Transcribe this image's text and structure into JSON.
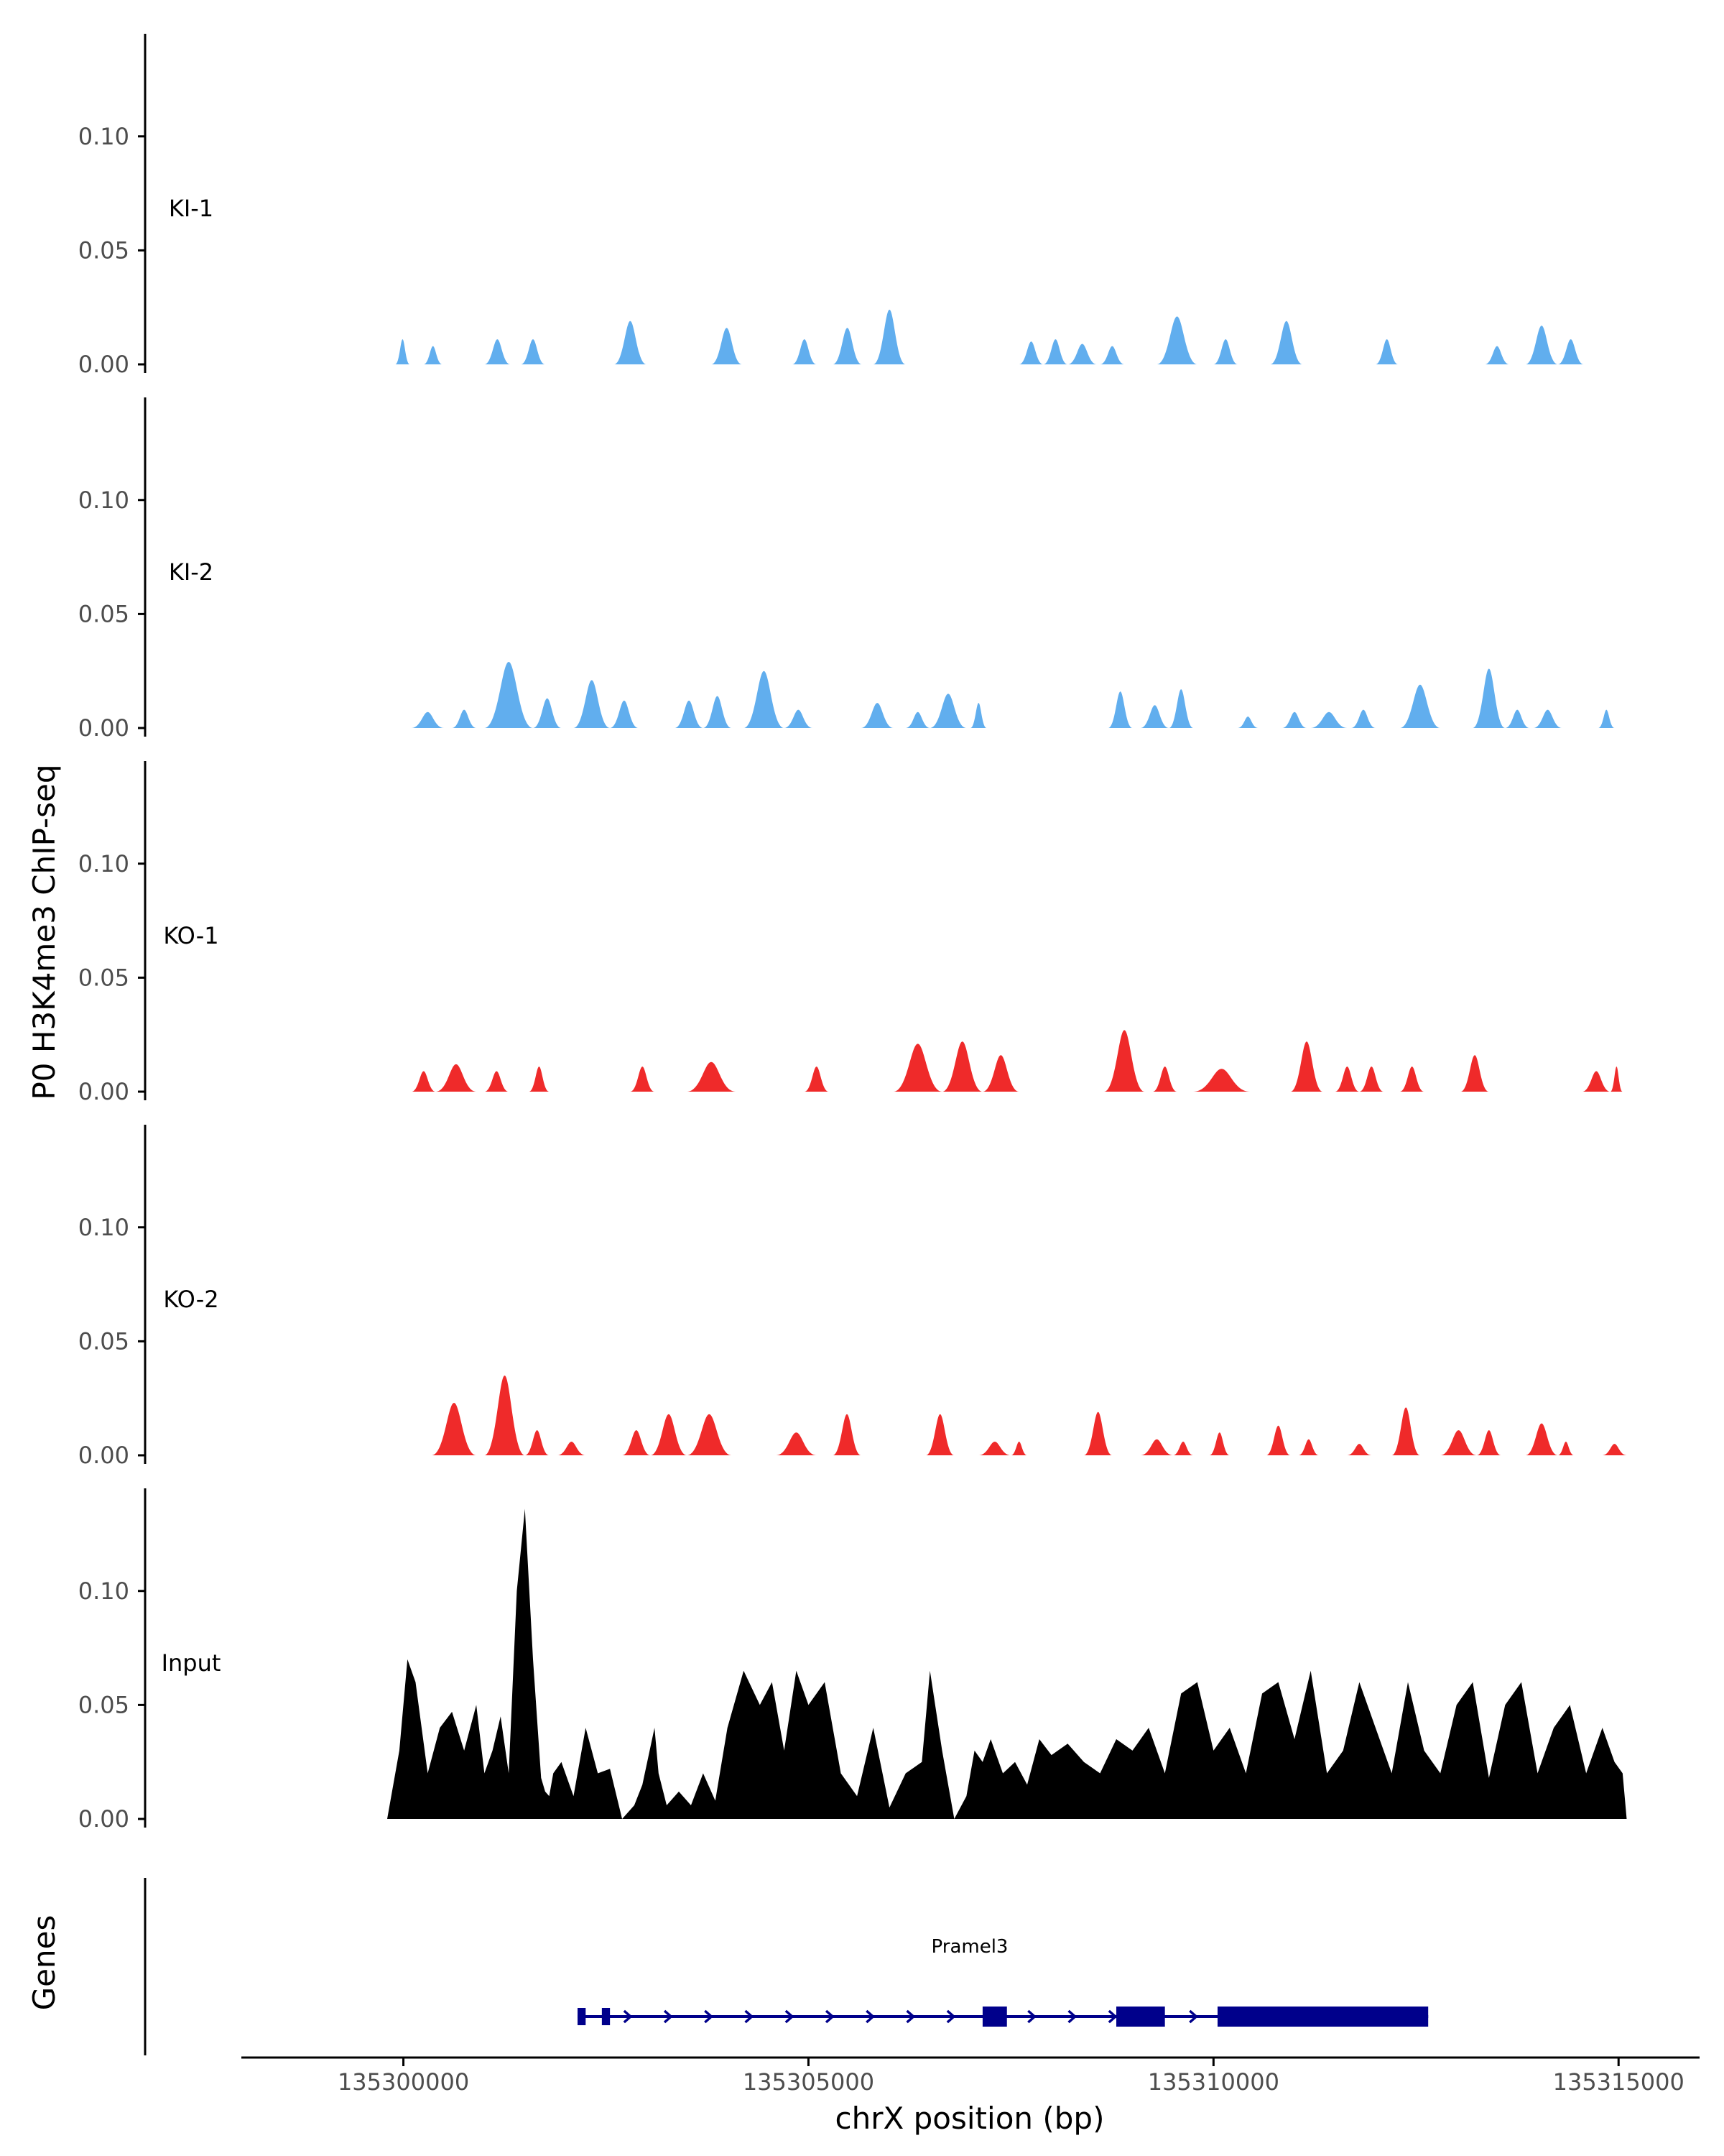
{
  "figure": {
    "ylabel": "P0 H3K4me3 ChIP-seq",
    "genes_label": "Genes",
    "xlabel": "chrX position (bp)",
    "gene_name": "Pramel3"
  },
  "colors": {
    "ki": "#61aeee",
    "ko": "#ef2a2a",
    "input": "#000000",
    "gene": "#00008b",
    "axis": "#000000",
    "tick_text": "#4d4d4d"
  },
  "chart_data": {
    "type": "area",
    "xlim": [
      135298000,
      135316000
    ],
    "x_ticks": [
      135300000,
      135305000,
      135310000,
      135315000
    ],
    "x_tick_labels": [
      "135300000",
      "135305000",
      "135310000",
      "135315000"
    ],
    "ylim": [
      0,
      0.145
    ],
    "y_ticks": [
      0,
      0.05,
      0.1
    ],
    "y_tick_labels": [
      "0.00",
      "0.05",
      "0.10"
    ],
    "tracks": [
      {
        "name": "KI-1",
        "color": "#61aeee",
        "peaks": [
          [
            135299900,
            135300080,
            0.011
          ],
          [
            135300250,
            135300480,
            0.008
          ],
          [
            135301000,
            135301320,
            0.011
          ],
          [
            135301450,
            135301750,
            0.011
          ],
          [
            135302600,
            135303000,
            0.019
          ],
          [
            135303800,
            135304180,
            0.016
          ],
          [
            135304800,
            135305100,
            0.011
          ],
          [
            135305300,
            135305660,
            0.016
          ],
          [
            135305800,
            135306200,
            0.024
          ],
          [
            135307600,
            135307900,
            0.01
          ],
          [
            135307900,
            135308200,
            0.011
          ],
          [
            135308200,
            135308560,
            0.009
          ],
          [
            135308600,
            135308900,
            0.008
          ],
          [
            135309300,
            135309800,
            0.021
          ],
          [
            135310000,
            135310300,
            0.011
          ],
          [
            135310700,
            135311100,
            0.019
          ],
          [
            135312000,
            135312280,
            0.011
          ],
          [
            135313350,
            135313650,
            0.008
          ],
          [
            135313850,
            135314250,
            0.017
          ],
          [
            135314250,
            135314570,
            0.011
          ]
        ]
      },
      {
        "name": "KI-2",
        "color": "#61aeee",
        "peaks": [
          [
            135300100,
            135300500,
            0.007
          ],
          [
            135300600,
            135300900,
            0.008
          ],
          [
            135301000,
            135301600,
            0.029
          ],
          [
            135301600,
            135301950,
            0.013
          ],
          [
            135302100,
            135302550,
            0.021
          ],
          [
            135302550,
            135302900,
            0.012
          ],
          [
            135303350,
            135303700,
            0.012
          ],
          [
            135303700,
            135304050,
            0.014
          ],
          [
            135304200,
            135304700,
            0.025
          ],
          [
            135304700,
            135305050,
            0.008
          ],
          [
            135305650,
            135306050,
            0.011
          ],
          [
            135306200,
            135306500,
            0.007
          ],
          [
            135306500,
            135306950,
            0.015
          ],
          [
            135307000,
            135307200,
            0.011
          ],
          [
            135308700,
            135309000,
            0.016
          ],
          [
            135309100,
            135309450,
            0.01
          ],
          [
            135309450,
            135309750,
            0.017
          ],
          [
            135310300,
            135310550,
            0.005
          ],
          [
            135310850,
            135311150,
            0.007
          ],
          [
            135311200,
            135311650,
            0.007
          ],
          [
            135311700,
            135312000,
            0.008
          ],
          [
            135312300,
            135312800,
            0.019
          ],
          [
            135313200,
            135313600,
            0.026
          ],
          [
            135313600,
            135313900,
            0.008
          ],
          [
            135313950,
            135314300,
            0.008
          ],
          [
            135314750,
            135314950,
            0.008
          ]
        ]
      },
      {
        "name": "KO-1",
        "color": "#ef2a2a",
        "peaks": [
          [
            135300100,
            135300400,
            0.009
          ],
          [
            135300400,
            135300900,
            0.012
          ],
          [
            135301000,
            135301300,
            0.009
          ],
          [
            135301550,
            135301800,
            0.011
          ],
          [
            135302800,
            135303100,
            0.011
          ],
          [
            135303500,
            135304100,
            0.013
          ],
          [
            135304950,
            135305250,
            0.011
          ],
          [
            135306050,
            135306650,
            0.021
          ],
          [
            135306650,
            135307150,
            0.022
          ],
          [
            135307150,
            135307600,
            0.016
          ],
          [
            135308650,
            135309150,
            0.027
          ],
          [
            135309250,
            135309550,
            0.011
          ],
          [
            135309750,
            135310450,
            0.01
          ],
          [
            135310950,
            135311350,
            0.022
          ],
          [
            135311500,
            135311800,
            0.011
          ],
          [
            135311800,
            135312100,
            0.011
          ],
          [
            135312300,
            135312600,
            0.011
          ],
          [
            135313050,
            135313400,
            0.016
          ],
          [
            135314550,
            135314900,
            0.009
          ],
          [
            135314900,
            135315050,
            0.011
          ]
        ]
      },
      {
        "name": "KO-2",
        "color": "#ef2a2a",
        "peaks": [
          [
            135300350,
            135300900,
            0.023
          ],
          [
            135301000,
            135301500,
            0.035
          ],
          [
            135301500,
            135301800,
            0.011
          ],
          [
            135301900,
            135302250,
            0.006
          ],
          [
            135302700,
            135303050,
            0.011
          ],
          [
            135303050,
            135303500,
            0.018
          ],
          [
            135303500,
            135304050,
            0.018
          ],
          [
            135304600,
            135305100,
            0.01
          ],
          [
            135305300,
            135305650,
            0.018
          ],
          [
            135306450,
            135306800,
            0.018
          ],
          [
            135307100,
            135307500,
            0.006
          ],
          [
            135307500,
            135307700,
            0.006
          ],
          [
            135308400,
            135308750,
            0.019
          ],
          [
            135309100,
            135309500,
            0.007
          ],
          [
            135309500,
            135309750,
            0.006
          ],
          [
            135309950,
            135310200,
            0.01
          ],
          [
            135310650,
            135310950,
            0.013
          ],
          [
            135311050,
            135311300,
            0.007
          ],
          [
            135311650,
            135311950,
            0.005
          ],
          [
            135312200,
            135312550,
            0.021
          ],
          [
            135312800,
            135313250,
            0.011
          ],
          [
            135313250,
            135313550,
            0.011
          ],
          [
            135313850,
            135314250,
            0.014
          ],
          [
            135314250,
            135314450,
            0.006
          ],
          [
            135314800,
            135315100,
            0.005
          ]
        ]
      },
      {
        "name": "Input",
        "color": "#000000",
        "x": [
          135299800,
          135299950,
          135300050,
          135300150,
          135300300,
          135300450,
          135300600,
          135300750,
          135300900,
          135301000,
          135301100,
          135301200,
          135301300,
          135301400,
          135301500,
          135301600,
          135301700,
          135301750,
          135301800,
          135301850,
          135301950,
          135302100,
          135302250,
          135302400,
          135302550,
          135302700,
          135302850,
          135302950,
          135303100,
          135303150,
          135303250,
          135303400,
          135303550,
          135303700,
          135303850,
          135304000,
          135304200,
          135304400,
          135304550,
          135304700,
          135304850,
          135305000,
          135305200,
          135305400,
          135305600,
          135305800,
          135306000,
          135306200,
          135306400,
          135306500,
          135306650,
          135306800,
          135306950,
          135307050,
          135307150,
          135307250,
          135307400,
          135307550,
          135307700,
          135307850,
          135308000,
          135308200,
          135308400,
          135308600,
          135308800,
          135309000,
          135309200,
          135309400,
          135309600,
          135309800,
          135310000,
          135310200,
          135310400,
          135310600,
          135310800,
          135311000,
          135311200,
          135311400,
          135311600,
          135311800,
          135312000,
          135312200,
          135312400,
          135312600,
          135312800,
          135313000,
          135313200,
          135313400,
          135313600,
          135313800,
          135314000,
          135314200,
          135314400,
          135314600,
          135314800,
          135314950,
          135315050,
          135315100
        ],
        "values": [
          0.0,
          0.03,
          0.07,
          0.06,
          0.02,
          0.04,
          0.047,
          0.03,
          0.05,
          0.02,
          0.03,
          0.045,
          0.02,
          0.1,
          0.136,
          0.07,
          0.018,
          0.012,
          0.01,
          0.02,
          0.025,
          0.01,
          0.04,
          0.02,
          0.022,
          0.0,
          0.006,
          0.015,
          0.04,
          0.02,
          0.006,
          0.012,
          0.006,
          0.02,
          0.008,
          0.04,
          0.065,
          0.05,
          0.06,
          0.03,
          0.065,
          0.05,
          0.06,
          0.02,
          0.01,
          0.04,
          0.005,
          0.02,
          0.025,
          0.065,
          0.03,
          0.0,
          0.01,
          0.03,
          0.025,
          0.035,
          0.02,
          0.025,
          0.015,
          0.035,
          0.028,
          0.033,
          0.025,
          0.02,
          0.035,
          0.03,
          0.04,
          0.02,
          0.055,
          0.06,
          0.03,
          0.04,
          0.02,
          0.055,
          0.06,
          0.035,
          0.065,
          0.02,
          0.03,
          0.06,
          0.04,
          0.02,
          0.06,
          0.03,
          0.02,
          0.05,
          0.06,
          0.018,
          0.05,
          0.06,
          0.02,
          0.04,
          0.05,
          0.02,
          0.04,
          0.025,
          0.02,
          0.0
        ]
      }
    ],
    "gene": {
      "name": "Pramel3",
      "start": 135302150,
      "end": 135312650,
      "strand": "+",
      "exons": [
        [
          135302150,
          135302250,
          "utr"
        ],
        [
          135302450,
          135302550,
          "utr"
        ],
        [
          135307150,
          135307450,
          "cds"
        ],
        [
          135308800,
          135309400,
          "cds"
        ],
        [
          135310050,
          135312650,
          "cds"
        ]
      ]
    }
  }
}
